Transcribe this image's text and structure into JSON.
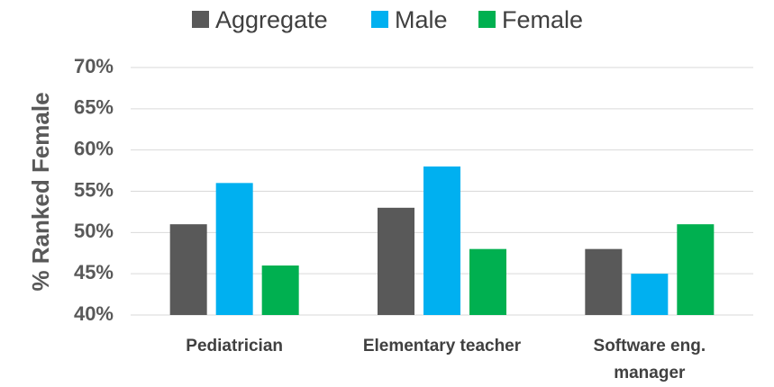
{
  "chart_data": {
    "type": "bar",
    "title": "",
    "xlabel": "",
    "ylabel": "% Ranked Female",
    "categories": [
      [
        "Pediatrician"
      ],
      [
        "Elementary teacher"
      ],
      [
        "Software eng.",
        "manager"
      ]
    ],
    "series": [
      {
        "name": "Aggregate",
        "color": "#595959",
        "values": [
          51,
          53,
          48
        ]
      },
      {
        "name": "Male",
        "color": "#00b0f0",
        "values": [
          56,
          58,
          45
        ]
      },
      {
        "name": "Female",
        "color": "#00b050",
        "values": [
          46,
          48,
          51
        ]
      }
    ],
    "ylim": [
      40,
      70
    ],
    "yticks": [
      40,
      45,
      50,
      55,
      60,
      65,
      70
    ],
    "ytick_suffix": "%",
    "grid": true,
    "legend_position": "top"
  }
}
